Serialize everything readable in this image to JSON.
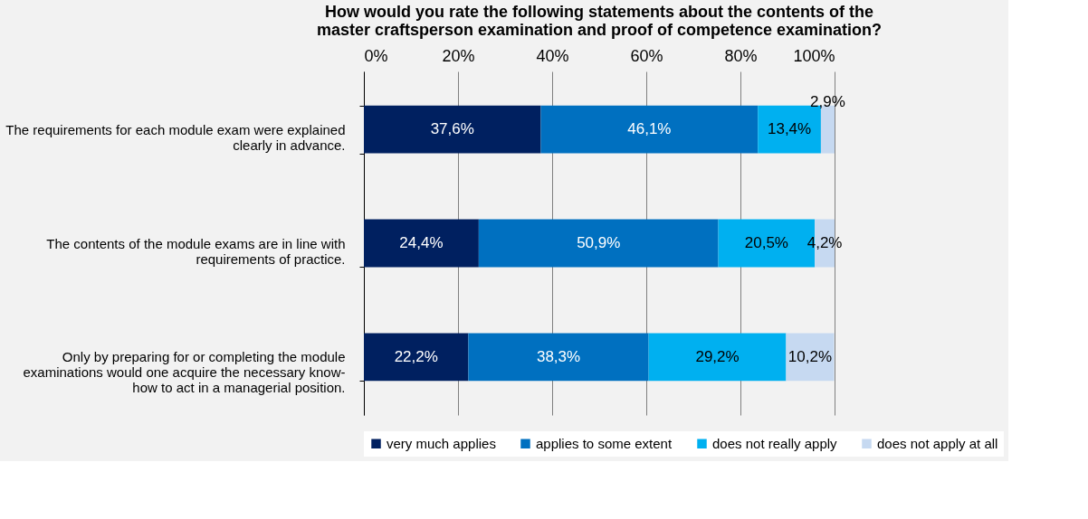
{
  "chart_data": {
    "type": "bar",
    "orientation": "horizontal",
    "stacked": true,
    "title": "How would you rate the following statements about the contents of the master craftsperson examination and proof of competence examination?",
    "categories": [
      "The requirements for each module exam were explained clearly in advance.",
      "The contents of the module exams are in line with requirements of practice.",
      "Only by preparing for or completing the module examinations would one acquire the necessary know-how to act in a managerial position."
    ],
    "series": [
      {
        "name": "very much applies",
        "color": "#002060",
        "values": [
          37.6,
          24.4,
          22.2
        ],
        "value_labels": [
          "37,6%",
          "24,4%",
          "22,2%"
        ]
      },
      {
        "name": "applies to some extent",
        "color": "#0070c0",
        "values": [
          46.1,
          50.9,
          38.3
        ],
        "value_labels": [
          "46,1%",
          "50,9%",
          "38,3%"
        ]
      },
      {
        "name": "does not really apply",
        "color": "#00b0f0",
        "values": [
          13.4,
          20.5,
          29.2
        ],
        "value_labels": [
          "13,4%",
          "20,5%",
          "29,2%"
        ]
      },
      {
        "name": "does not apply at all",
        "color": "#c6d9f1",
        "values": [
          2.9,
          4.2,
          10.2
        ],
        "value_labels": [
          "2,9%",
          "4,2%",
          "10,2%"
        ]
      }
    ],
    "xlim": [
      0,
      100
    ],
    "xticks": [
      {
        "value": 0,
        "label": "0%"
      },
      {
        "value": 20,
        "label": "20%"
      },
      {
        "value": 40,
        "label": "40%"
      },
      {
        "value": 60,
        "label": "60%"
      },
      {
        "value": 80,
        "label": "80%"
      },
      {
        "value": 100,
        "label": "100%"
      }
    ],
    "grid": "x",
    "legend": "bottom"
  }
}
